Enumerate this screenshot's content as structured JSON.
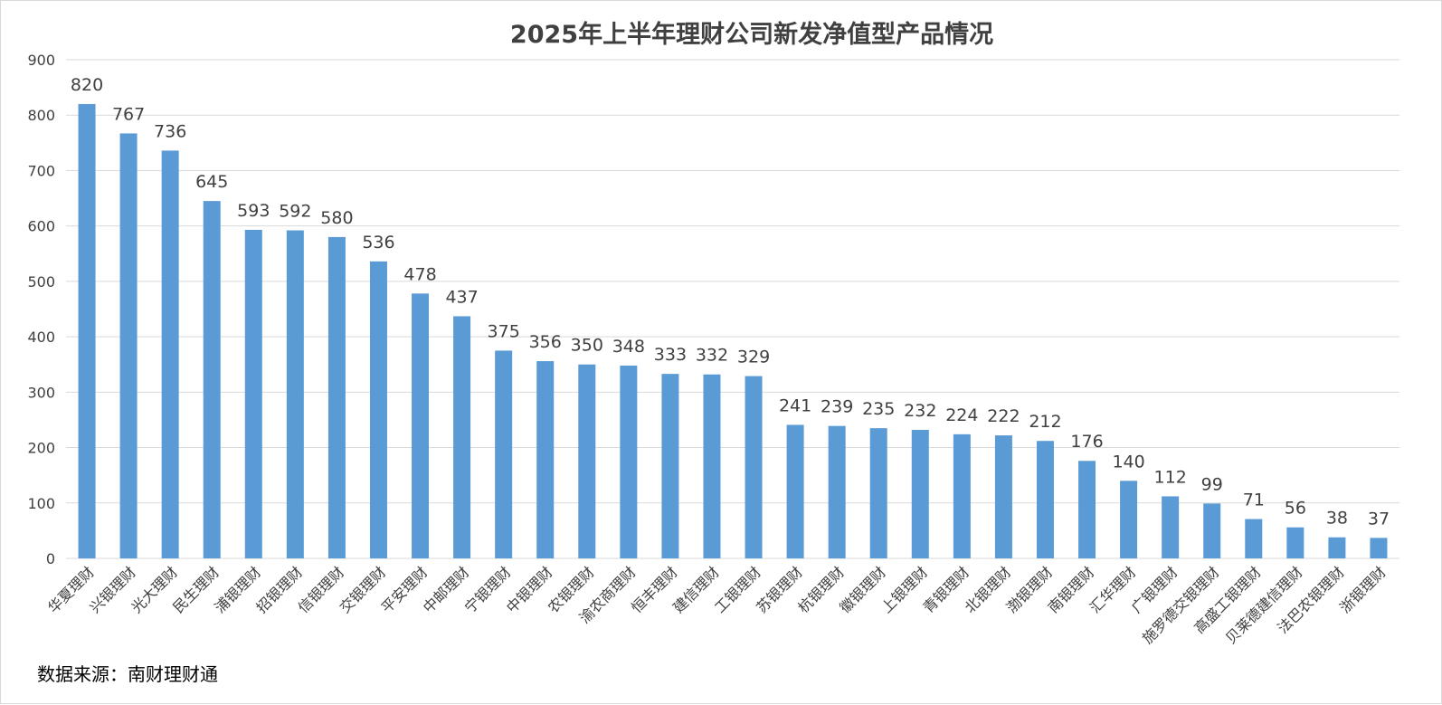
{
  "source_note": "数据来源：南财理财通",
  "chart_data": {
    "type": "bar",
    "title": "2025年上半年理财公司新发净值型产品情况",
    "categories": [
      "华夏理财",
      "兴银理财",
      "光大理财",
      "民生理财",
      "浦银理财",
      "招银理财",
      "信银理财",
      "交银理财",
      "平安理财",
      "中邮理财",
      "宁银理财",
      "中银理财",
      "农银理财",
      "渝农商理财",
      "恒丰理财",
      "建信理财",
      "工银理财",
      "苏银理财",
      "杭银理财",
      "徽银理财",
      "上银理财",
      "青银理财",
      "北银理财",
      "渤银理财",
      "南银理财",
      "汇华理财",
      "广银理财",
      "施罗德交银理财",
      "高盛工银理财",
      "贝莱德建信理财",
      "法巴农银理财",
      "浙银理财"
    ],
    "values": [
      820,
      767,
      736,
      645,
      593,
      592,
      580,
      536,
      478,
      437,
      375,
      356,
      350,
      348,
      333,
      332,
      329,
      241,
      239,
      235,
      232,
      224,
      222,
      212,
      176,
      140,
      112,
      99,
      71,
      56,
      38,
      37
    ],
    "ylim": [
      0,
      900
    ],
    "yticks": [
      0,
      100,
      200,
      300,
      400,
      500,
      600,
      700,
      800,
      900
    ],
    "grid": true,
    "bar_color": "#5b9bd5",
    "grid_color": "#d9d9d9",
    "legend": "none"
  }
}
